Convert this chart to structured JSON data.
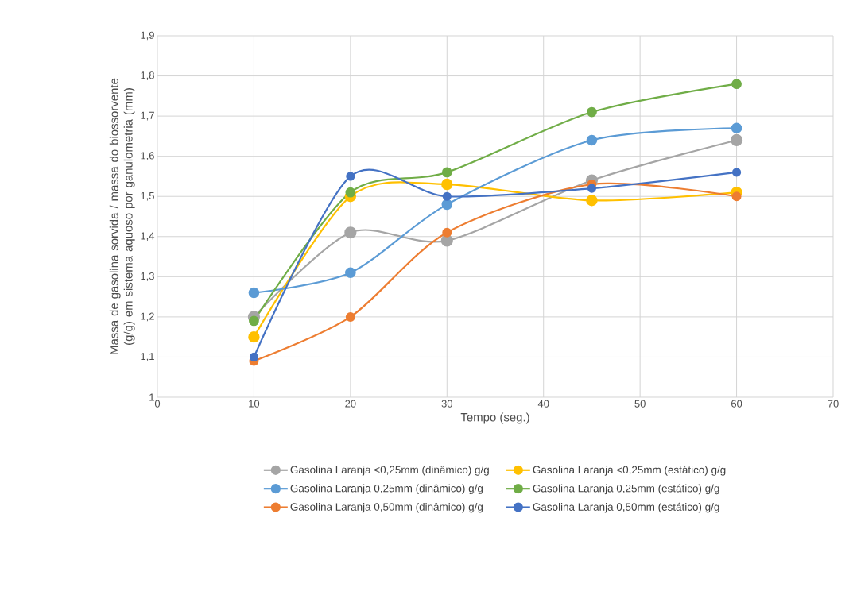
{
  "chart_data": {
    "type": "line",
    "xlabel": "Tempo (seg.)",
    "ylabel": "Massa de gasolina sorvida / massa do biossorvente (g/g) em sistema aquoso por ganulometria (mm)",
    "x": [
      10,
      20,
      30,
      45,
      60
    ],
    "xlim": [
      0,
      70
    ],
    "xticks": [
      0,
      10,
      20,
      30,
      40,
      50,
      60,
      70
    ],
    "ylim": [
      1,
      1.9
    ],
    "yticks": [
      1,
      {
        "value": 1.1,
        "label": "1,1"
      },
      {
        "value": 1.2,
        "label": "1,2"
      },
      {
        "value": 1.3,
        "label": "1,3"
      },
      {
        "value": 1.4,
        "label": "1,4"
      },
      {
        "value": 1.5,
        "label": "1,5"
      },
      {
        "value": 1.6,
        "label": "1,6"
      },
      {
        "value": 1.7,
        "label": "1,7"
      },
      {
        "value": 1.8,
        "label": "1,8"
      },
      {
        "value": 1.9,
        "label": "1,9"
      }
    ],
    "grid": true,
    "legend": "bottom",
    "marker": "circle",
    "line_style": "solid",
    "series": [
      {
        "name": "Gasolina Laranja <0,25mm (dinâmico) g/g",
        "color": "#a5a5a5",
        "values": [
          1.2,
          1.41,
          1.39,
          1.54,
          1.64
        ]
      },
      {
        "name": "Gasolina Laranja <0,25mm (estático) g/g",
        "color": "#ffc000",
        "values": [
          1.15,
          1.5,
          1.53,
          1.49,
          1.51
        ]
      },
      {
        "name": "Gasolina Laranja 0,25mm (dinâmico) g/g",
        "color": "#5b9bd5",
        "values": [
          1.26,
          1.31,
          1.48,
          1.64,
          1.67
        ]
      },
      {
        "name": "Gasolina Laranja 0,25mm (estático) g/g",
        "color": "#70ad47",
        "values": [
          1.19,
          1.51,
          1.56,
          1.71,
          1.78
        ]
      },
      {
        "name": "Gasolina Laranja 0,50mm (dinâmico) g/g",
        "color": "#ed7d31",
        "values": [
          1.09,
          1.2,
          1.41,
          1.53,
          1.5
        ]
      },
      {
        "name": "Gasolina Laranja 0,50mm (estático) g/g",
        "color": "#4472c4",
        "values": [
          1.1,
          1.55,
          1.5,
          1.52,
          1.56
        ]
      }
    ]
  }
}
